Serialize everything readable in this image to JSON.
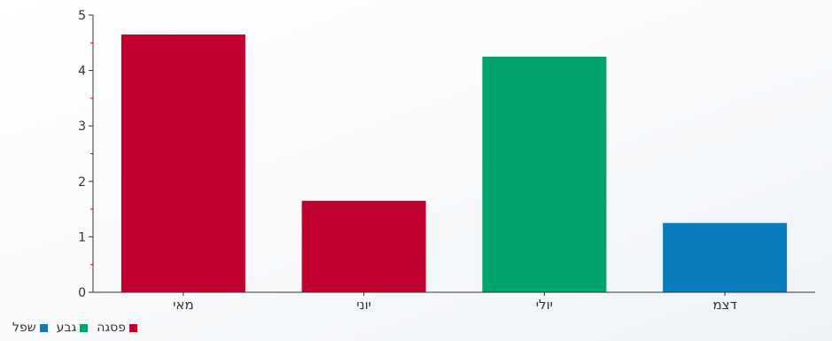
{
  "chart_data": {
    "type": "bar",
    "categories": [
      "מאי",
      "יוני",
      "יולי",
      "דצמ"
    ],
    "values": [
      4.65,
      1.65,
      4.25,
      1.25
    ],
    "bar_series": [
      "פסגה",
      "פסגה",
      "גבע",
      "שפל"
    ],
    "ylim": [
      0,
      5
    ],
    "yticks": [
      "0",
      "1",
      "2",
      "3",
      "4",
      "5"
    ],
    "grid": false,
    "legend_position": "bottom-left",
    "series": [
      {
        "name": "פסגה",
        "color": "#c0002e"
      },
      {
        "name": "גבע",
        "color": "#00a36a"
      },
      {
        "name": "שפל",
        "color": "#0a7bbd"
      }
    ]
  }
}
